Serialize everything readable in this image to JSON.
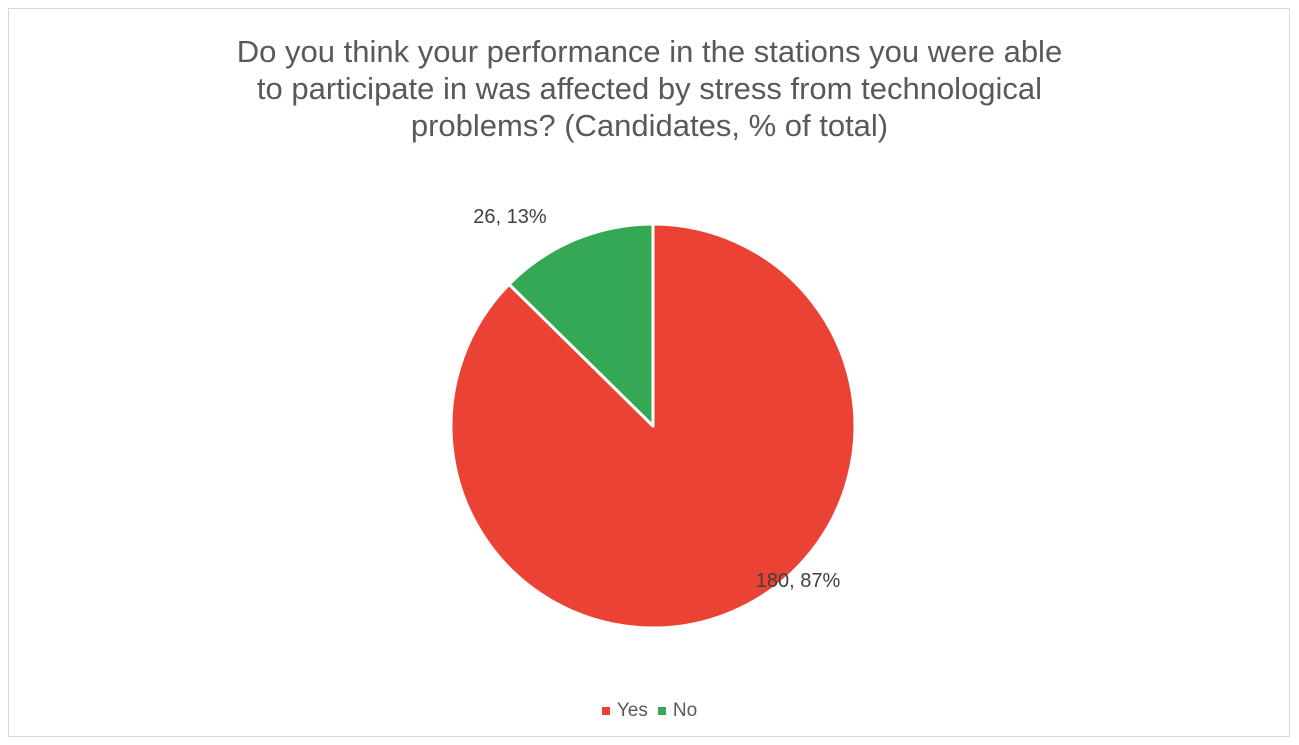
{
  "chart_data": {
    "type": "pie",
    "title_lines": [
      "Do you think your performance in the stations you were able",
      "to participate in was affected by stress from technological",
      "problems? (Candidates, % of total)"
    ],
    "slices": [
      {
        "label": "Yes",
        "value": 180,
        "percent": 87,
        "data_label": "180, 87%",
        "color": "#ea4335"
      },
      {
        "label": "No",
        "value": 26,
        "percent": 13,
        "data_label": "26, 13%",
        "color": "#34a853"
      }
    ],
    "start_angle_deg": 0,
    "direction": "clockwise",
    "legend_position": "bottom"
  }
}
